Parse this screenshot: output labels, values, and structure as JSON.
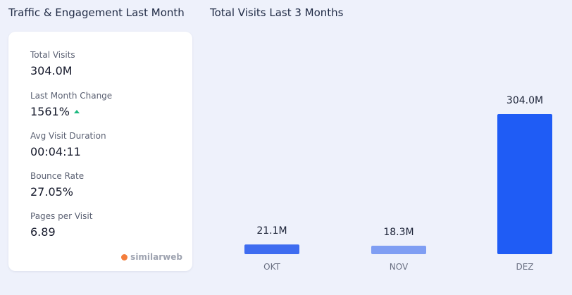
{
  "section_titles": {
    "left": "Traffic & Engagement Last Month",
    "right": "Total Visits Last 3 Months"
  },
  "metrics": [
    {
      "label": "Total Visits",
      "value": "304.0M"
    },
    {
      "label": "Last Month Change",
      "value": "1561%",
      "trend": "up"
    },
    {
      "label": "Avg Visit Duration",
      "value": "00:04:11"
    },
    {
      "label": "Bounce Rate",
      "value": "27.05%"
    },
    {
      "label": "Pages per Visit",
      "value": "6.89"
    }
  ],
  "brand": {
    "name": "similarweb",
    "color": "#f47e3c"
  },
  "colors": {
    "trend_up": "#1eb980"
  },
  "chart_data": {
    "type": "bar",
    "title": "Total Visits Last 3 Months",
    "categories": [
      "OKT",
      "NOV",
      "DEZ"
    ],
    "values": [
      21.1,
      18.3,
      304.0
    ],
    "value_labels": [
      "21.1M",
      "18.3M",
      "304.0M"
    ],
    "ylim": [
      0,
      304.0
    ],
    "grid": false,
    "bar_colors": [
      "#3e6cf0",
      "#7f9ef3",
      "#1f5cf5"
    ]
  }
}
